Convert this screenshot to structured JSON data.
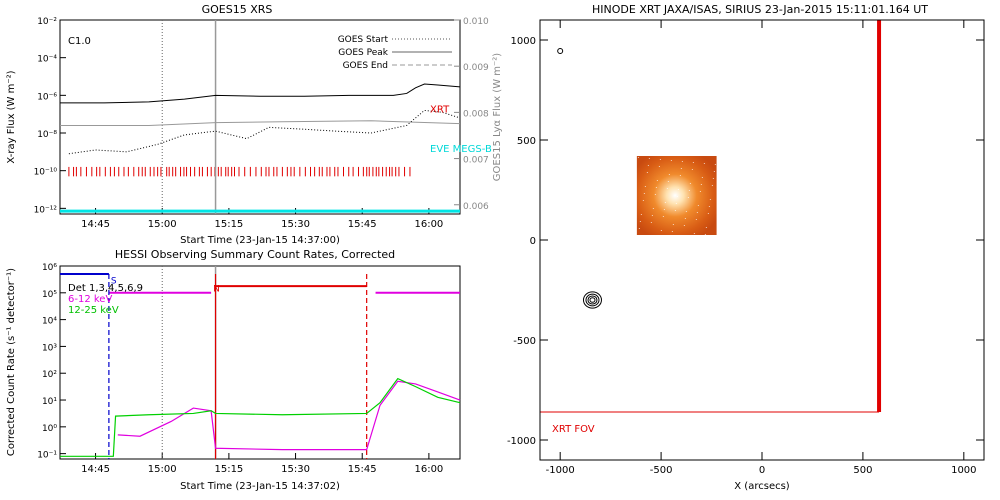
{
  "chart_data": [
    {
      "type": "line",
      "title": "GOES15 XRS",
      "xlabel": "Start Time (23-Jan-15 14:37:00)",
      "ylabel": "X-ray Flux (W m⁻²)",
      "y2label": "GOES15 Lyα Flux (W m⁻²)",
      "x_ticks": [
        "14:45",
        "15:00",
        "15:15",
        "15:30",
        "15:45",
        "16:00"
      ],
      "y_ticks": [
        "10⁻²",
        "10⁻⁴",
        "10⁻⁶",
        "10⁻⁸",
        "10⁻¹⁰",
        "10⁻¹²"
      ],
      "y2_ticks": [
        "0.010",
        "0.009",
        "0.008",
        "0.007",
        "0.006"
      ],
      "xlim_minutes": [
        0,
        90
      ],
      "ylim_log10": [
        -12.3,
        -2
      ],
      "y2lim": [
        0.0058,
        0.01
      ],
      "class_label": "C1.0",
      "legend": [
        {
          "name": "GOES Start",
          "style": "dotted"
        },
        {
          "name": "GOES Peak",
          "style": "solid"
        },
        {
          "name": "GOES End",
          "style": "dashed"
        }
      ],
      "annotations": [
        {
          "text": "XRT",
          "color": "#e00000",
          "x_min": 81,
          "y_log": -6.7
        },
        {
          "text": "EVE MEGS-B",
          "color": "#00d8d8",
          "x_min": 81,
          "y_log": -8.8
        }
      ],
      "markers": {
        "start_min": 23,
        "peak_min": 35,
        "end_min": null
      },
      "series": [
        {
          "name": "",
          "color": "#000000",
          "points": [
            [
              0,
              -6.4
            ],
            [
              10,
              -6.4
            ],
            [
              20,
              -6.35
            ],
            [
              28,
              -6.2
            ],
            [
              35,
              -6.0
            ],
            [
              45,
              -6.05
            ],
            [
              55,
              -6.05
            ],
            [
              65,
              -6.0
            ],
            [
              75,
              -6.0
            ],
            [
              78,
              -5.9
            ],
            [
              80,
              -5.6
            ],
            [
              82,
              -5.4
            ],
            [
              85,
              -5.45
            ],
            [
              90,
              -5.55
            ]
          ]
        },
        {
          "name": "",
          "color": "#999999",
          "points": [
            [
              0,
              -7.6
            ],
            [
              20,
              -7.6
            ],
            [
              35,
              -7.45
            ],
            [
              50,
              -7.4
            ],
            [
              70,
              -7.35
            ],
            [
              90,
              -7.5
            ]
          ]
        },
        {
          "name": "",
          "color": "#000000",
          "dotted": true,
          "points": [
            [
              2,
              -9.1
            ],
            [
              8,
              -8.9
            ],
            [
              15,
              -9.0
            ],
            [
              22,
              -8.6
            ],
            [
              28,
              -8.1
            ],
            [
              35,
              -7.9
            ],
            [
              42,
              -8.3
            ],
            [
              47,
              -7.7
            ],
            [
              55,
              -7.8
            ],
            [
              62,
              -7.9
            ],
            [
              70,
              -8.0
            ],
            [
              78,
              -7.6
            ],
            [
              82,
              -6.8
            ],
            [
              86,
              -6.9
            ],
            [
              90,
              -7.2
            ]
          ]
        },
        {
          "name": "",
          "color": "#00e5e5",
          "points": [
            [
              0,
              -12.15
            ],
            [
              90,
              -12.15
            ]
          ]
        }
      ],
      "xrt_ticks_span_min": [
        2,
        79
      ],
      "xrt_ticks_log_range": [
        -10.3,
        -9.8
      ]
    },
    {
      "type": "line",
      "title": "HESSI Observing Summary Count Rates, Corrected",
      "xlabel": "Start Time (23-Jan-15 14:37:02)",
      "ylabel": "Corrected Count Rate (s⁻¹ detector⁻¹)",
      "x_ticks": [
        "14:45",
        "15:00",
        "15:15",
        "15:30",
        "15:45",
        "16:00"
      ],
      "y_ticks": [
        "10⁶",
        "10⁵",
        "10⁴",
        "10³",
        "10²",
        "10¹",
        "10⁰",
        "10⁻¹"
      ],
      "xlim_minutes": [
        0,
        90
      ],
      "ylim_log10": [
        -1.2,
        6
      ],
      "legend": [
        {
          "name": "Det 1,3,4,5,6,9",
          "color": "#000000"
        },
        {
          "name": "6-12 keV",
          "color": "#e000e0"
        },
        {
          "name": "12-25 keV",
          "color": "#00d000"
        }
      ],
      "flags": [
        {
          "text": "S",
          "color": "#0000cc",
          "x_min": 11,
          "y_log": 5.5
        },
        {
          "text": "N",
          "color": "#e00000",
          "x_min": 34,
          "y_log": 5.2
        }
      ],
      "markers": {
        "start_min": 23,
        "peak_min": 35,
        "end_min": null
      },
      "bars": [
        {
          "color": "#0000cc",
          "x0": 0,
          "x1": 11,
          "y_log": 5.7
        },
        {
          "color": "#e000e0",
          "x0": 11,
          "y_log": 5.0,
          "x1": 34
        },
        {
          "color": "#e00000",
          "x0": 35,
          "x1": 69,
          "y_log": 5.25
        },
        {
          "color": "#e000e0",
          "x0": 71,
          "x1": 90,
          "y_log": 5.0
        }
      ],
      "vlines": [
        {
          "color": "#0000cc",
          "dashed": true,
          "x_min": 11
        },
        {
          "color": "#e00000",
          "dashed": false,
          "x_min": 35
        },
        {
          "color": "#e00000",
          "dashed": true,
          "x_min": 69
        }
      ],
      "series": [
        {
          "name": "6-12 keV",
          "color": "#e000e0",
          "points": [
            [
              13,
              -0.3
            ],
            [
              18,
              -0.35
            ],
            [
              25,
              0.2
            ],
            [
              30,
              0.7
            ],
            [
              34,
              0.6
            ],
            [
              35,
              -0.8
            ],
            [
              50,
              -0.85
            ],
            [
              69,
              -0.85
            ],
            [
              72,
              0.8
            ],
            [
              76,
              1.7
            ],
            [
              80,
              1.6
            ],
            [
              85,
              1.3
            ],
            [
              90,
              1.0
            ]
          ]
        },
        {
          "name": "12-25 keV",
          "color": "#00d000",
          "points": [
            [
              0,
              -1.1
            ],
            [
              12,
              -1.1
            ],
            [
              12.5,
              0.4
            ],
            [
              20,
              0.45
            ],
            [
              30,
              0.5
            ],
            [
              34,
              0.6
            ],
            [
              35,
              0.5
            ],
            [
              50,
              0.45
            ],
            [
              69,
              0.5
            ],
            [
              72,
              0.9
            ],
            [
              76,
              1.8
            ],
            [
              80,
              1.5
            ],
            [
              85,
              1.1
            ],
            [
              90,
              0.9
            ]
          ]
        }
      ]
    },
    {
      "type": "scatter",
      "title": "HINODE XRT JAXA/ISAS, SIRIUS 23-Jan-2015 15:11:01.164 UT",
      "xlabel": "X (arcsecs)",
      "ylabel": "",
      "xlim": [
        -1100,
        1100
      ],
      "ylim": [
        -1100,
        1100
      ],
      "x_ticks": [
        -1000,
        -500,
        0,
        500,
        1000
      ],
      "y_ticks": [
        1000,
        500,
        0,
        -500,
        -1000
      ],
      "fov_label": "XRT FOV",
      "fov_color": "#e00000",
      "fov_box": {
        "x0": -1100,
        "x1": 580,
        "y0": -860,
        "y1": 1100
      },
      "image_patch": {
        "x0": -620,
        "x1": -225,
        "y0": 25,
        "y1": 420
      },
      "contour_center": [
        -840,
        -300
      ],
      "small_circle": [
        -1000,
        945
      ]
    }
  ]
}
